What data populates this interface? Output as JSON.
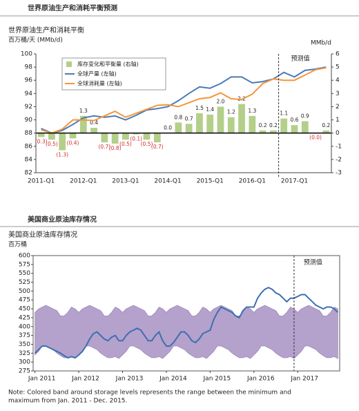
{
  "header": "世界原油生产和消耗平衡预测",
  "section2_header": "美国商业原油库存情况",
  "note": [
    "Note: Colored band around storage levels represents the range between the minimum and",
    "maximum from Jan. 2011 - Dec. 2015."
  ],
  "chart_data": [
    {
      "type": "combo",
      "title": "世界原油生产和消耗平衡",
      "y_label": "百万桶/天 (MMb/d)",
      "y2_label": "MMb/d",
      "annotation": "预测值",
      "categories": [
        "2011-Q1",
        null,
        null,
        null,
        "2012-Q1",
        null,
        null,
        null,
        "2013-Q1",
        null,
        null,
        null,
        "2014-Q1",
        null,
        null,
        null,
        "2015-Q1",
        null,
        null,
        null,
        "2016-Q1",
        null,
        null,
        null,
        "2017-Q1",
        null,
        null,
        null
      ],
      "series": [
        {
          "name": "库存变化和平衡量 (右轴)",
          "type": "bar",
          "axis": "y2",
          "color": "#b3cf8a",
          "values": [
            -0.3,
            -0.5,
            -1.3,
            -0.4,
            1.3,
            0.4,
            -0.7,
            -0.8,
            -0.5,
            -0.1,
            -0.5,
            -0.7,
            0.0,
            0.8,
            0.7,
            1.5,
            1.4,
            2.0,
            1.2,
            2.2,
            1.3,
            0.2,
            0.2,
            1.1,
            0.6,
            0.9,
            0.0,
            0.2
          ],
          "value_labels": [
            "(0.3)",
            "(0.5)",
            "(1.3)",
            "(0.4)",
            "1.3",
            "0.4",
            "(0.7)",
            "(0.8)",
            "(0.5)",
            "(0.1)",
            "(0.5)",
            "(0.7)",
            "0.0",
            "0.8",
            "0.7",
            "1.5",
            "1.4",
            "2.0",
            "1.2",
            "2.2",
            "1.3",
            "0.2",
            "0.2",
            "1.1",
            "0.6",
            "0.9",
            "(0.0)",
            "0.2"
          ]
        },
        {
          "name": "全球产量 (左轴)",
          "type": "line",
          "color": "#4a7ab8",
          "values": [
            88.7,
            88.0,
            88.4,
            89.3,
            90.3,
            90.6,
            90.4,
            90.6,
            90.0,
            90.7,
            91.5,
            91.7,
            92.0,
            92.9,
            94.0,
            95.0,
            94.8,
            95.5,
            96.5,
            96.5,
            95.6,
            95.8,
            96.2,
            97.2,
            96.5,
            97.5,
            97.7,
            98.0
          ]
        },
        {
          "name": "全球消耗量 (左轴)",
          "type": "line",
          "color": "#f5953a",
          "values": [
            88.5,
            88.0,
            88.6,
            90.0,
            90.0,
            89.9,
            90.6,
            91.3,
            90.4,
            91.0,
            91.6,
            92.2,
            92.3,
            92.0,
            92.6,
            93.2,
            93.4,
            94.1,
            93.2,
            93.1,
            93.9,
            95.5,
            96.2,
            96.0,
            96.0,
            96.8,
            97.6,
            97.9
          ]
        }
      ],
      "ylim": [
        82,
        100
      ],
      "yticks": [
        82,
        84,
        86,
        88,
        90,
        92,
        94,
        96,
        98,
        100
      ],
      "y2lim": [
        -3,
        6
      ],
      "y2ticks": [
        -3,
        -2,
        -1,
        0,
        1,
        2,
        3,
        4,
        5,
        6
      ],
      "grid": false
    },
    {
      "type": "line-band",
      "title": "美国商业原油库存情况",
      "y_label": "百万桶",
      "annotation": "预测值",
      "color": "#3c6fb0",
      "band_color": "#b4a1cc",
      "categories": [
        "Jan 2011",
        null,
        null,
        null,
        null,
        null,
        null,
        null,
        null,
        null,
        null,
        null,
        "Jan 2012",
        null,
        null,
        null,
        null,
        null,
        null,
        null,
        null,
        null,
        null,
        null,
        "Jan 2013",
        null,
        null,
        null,
        null,
        null,
        null,
        null,
        null,
        null,
        null,
        null,
        "Jan 2014",
        null,
        null,
        null,
        null,
        null,
        null,
        null,
        null,
        null,
        null,
        null,
        "Jan 2015",
        null,
        null,
        null,
        null,
        null,
        null,
        null,
        null,
        null,
        null,
        null,
        "Jan 2016",
        null,
        null,
        null,
        null,
        null,
        null,
        null,
        null,
        null,
        null,
        null,
        "Jan 2017",
        null,
        null,
        null,
        null,
        null,
        null,
        null,
        null,
        null,
        null,
        null
      ],
      "values": [
        325,
        335,
        345,
        345,
        340,
        335,
        330,
        325,
        318,
        312,
        315,
        312,
        320,
        330,
        345,
        365,
        380,
        385,
        375,
        365,
        360,
        370,
        375,
        360,
        360,
        375,
        385,
        390,
        395,
        390,
        375,
        360,
        360,
        375,
        385,
        360,
        345,
        345,
        355,
        370,
        385,
        385,
        375,
        360,
        355,
        365,
        380,
        385,
        390,
        420,
        440,
        455,
        450,
        445,
        440,
        430,
        425,
        445,
        455,
        455,
        455,
        480,
        495,
        505,
        510,
        505,
        495,
        490,
        480,
        470,
        480,
        480,
        485,
        490,
        490,
        480,
        470,
        460,
        455,
        450,
        455,
        455,
        450,
        440
      ],
      "band_upper": [
        440,
        450,
        455,
        460,
        455,
        450,
        445,
        430,
        430,
        440,
        455,
        450,
        440,
        450,
        455,
        460,
        455,
        450,
        445,
        430,
        430,
        440,
        455,
        450,
        440,
        450,
        455,
        460,
        455,
        450,
        445,
        430,
        430,
        440,
        455,
        450,
        440,
        450,
        455,
        460,
        455,
        450,
        445,
        430,
        430,
        440,
        455,
        450,
        440,
        450,
        455,
        460,
        455,
        450,
        445,
        430,
        430,
        440,
        455,
        450,
        440,
        450,
        455,
        460,
        455,
        450,
        445,
        430,
        430,
        440,
        455,
        450,
        440,
        450,
        455,
        460,
        455,
        450,
        445,
        430,
        430,
        440,
        455,
        450
      ],
      "band_lower": [
        320,
        330,
        345,
        345,
        340,
        335,
        325,
        318,
        312,
        312,
        315,
        310,
        320,
        330,
        345,
        345,
        340,
        335,
        325,
        318,
        312,
        312,
        315,
        310,
        320,
        330,
        345,
        345,
        340,
        335,
        325,
        318,
        312,
        312,
        315,
        310,
        320,
        330,
        345,
        345,
        340,
        335,
        325,
        318,
        312,
        312,
        315,
        310,
        320,
        330,
        345,
        345,
        340,
        335,
        325,
        318,
        312,
        312,
        315,
        310,
        320,
        330,
        345,
        345,
        340,
        335,
        325,
        318,
        312,
        312,
        315,
        310,
        320,
        330,
        345,
        345,
        340,
        335,
        325,
        318,
        312,
        312,
        315,
        310
      ],
      "ylim": [
        275,
        600
      ],
      "yticks": [
        275,
        300,
        325,
        350,
        375,
        400,
        425,
        450,
        475,
        500,
        525,
        550,
        575,
        600
      ],
      "grid": false
    }
  ]
}
